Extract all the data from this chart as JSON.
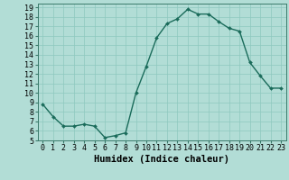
{
  "x": [
    0,
    1,
    2,
    3,
    4,
    5,
    6,
    7,
    8,
    9,
    10,
    11,
    12,
    13,
    14,
    15,
    16,
    17,
    18,
    19,
    20,
    21,
    22,
    23
  ],
  "y": [
    8.8,
    7.5,
    6.5,
    6.5,
    6.7,
    6.5,
    5.3,
    5.5,
    5.8,
    10.0,
    12.8,
    15.8,
    17.3,
    17.8,
    18.8,
    18.3,
    18.3,
    17.5,
    16.8,
    16.5,
    13.2,
    11.8,
    10.5,
    10.5
  ],
  "xlabel": "Humidex (Indice chaleur)",
  "ylabel": "",
  "xlim": [
    -0.5,
    23.5
  ],
  "ylim": [
    5,
    19.4
  ],
  "yticks": [
    5,
    6,
    7,
    8,
    9,
    10,
    11,
    12,
    13,
    14,
    15,
    16,
    17,
    18,
    19
  ],
  "xticks": [
    0,
    1,
    2,
    3,
    4,
    5,
    6,
    7,
    8,
    9,
    10,
    11,
    12,
    13,
    14,
    15,
    16,
    17,
    18,
    19,
    20,
    21,
    22,
    23
  ],
  "line_color": "#1a6b5a",
  "marker_color": "#1a6b5a",
  "bg_color": "#b2ddd6",
  "grid_color": "#8ec8be",
  "xlabel_fontsize": 7.5,
  "tick_fontsize": 6,
  "marker_size": 2.0,
  "line_width": 1.0
}
